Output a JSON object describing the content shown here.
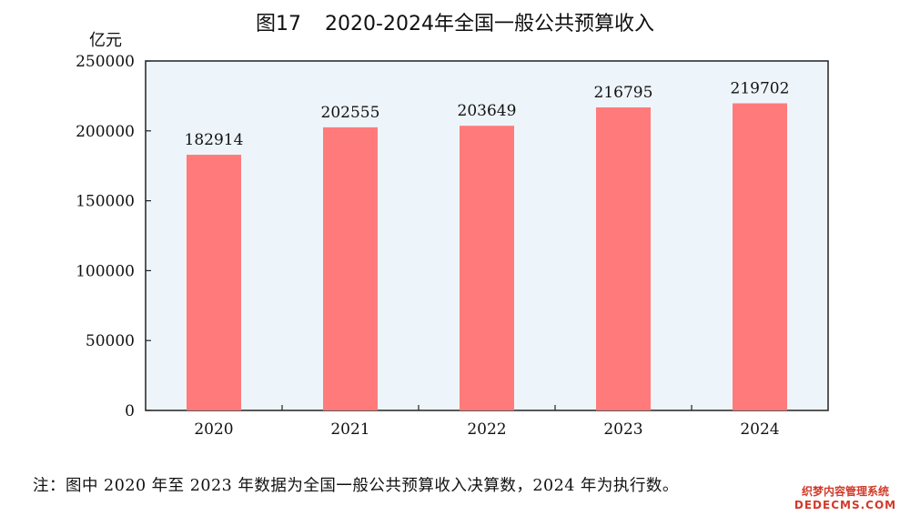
{
  "chart_data": {
    "type": "bar",
    "title_prefix": "图17",
    "title": "2020-2024年全国一般公共预算收入",
    "unit": "亿元",
    "categories": [
      "2020",
      "2021",
      "2022",
      "2023",
      "2024"
    ],
    "values": [
      182914,
      202555,
      203649,
      216795,
      219702
    ],
    "ylim": [
      0,
      250000
    ],
    "yticks": [
      "0",
      "50000",
      "100000",
      "150000",
      "200000",
      "250000"
    ],
    "bar_color": "#ff7b7b",
    "plot_background": "#eef5fa",
    "grid": false
  },
  "footnote": "注：图中 2020 年至 2023 年数据为全国一般公共预算收入决算数，2024 年为执行数。",
  "watermark": {
    "line1": "织梦内容管理系统",
    "line2": "DEDECMS.COM"
  }
}
